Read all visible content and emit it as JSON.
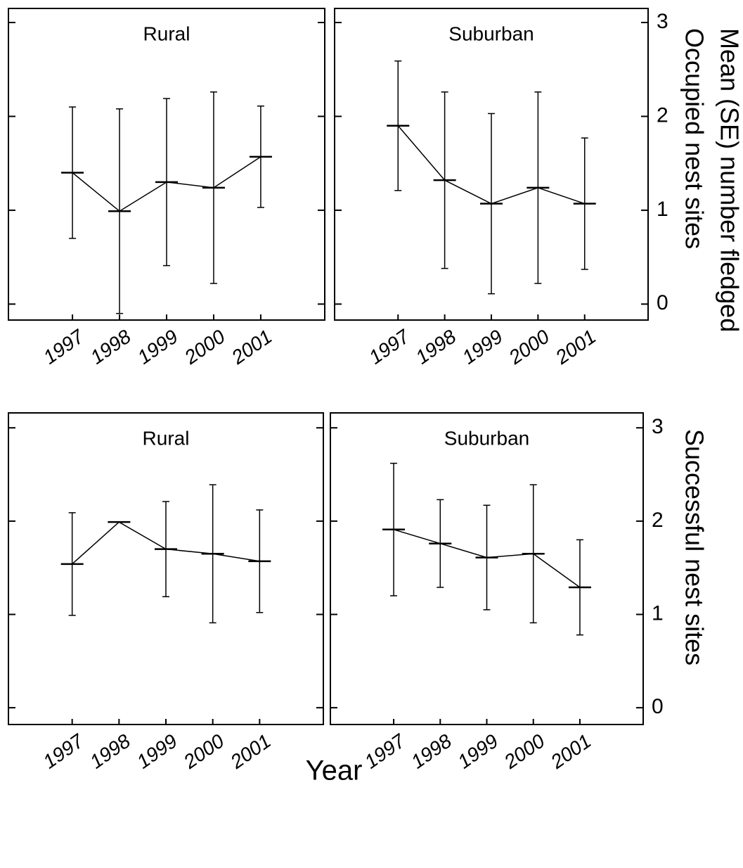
{
  "figure": {
    "xlabel": "Year",
    "ylabel": "Mean (SE) number fledged"
  },
  "chart_data": [
    {
      "type": "line",
      "title": "Rural",
      "categories": [
        "1997",
        "1998",
        "1999",
        "2000",
        "2001"
      ],
      "values": [
        1.4,
        0.99,
        1.3,
        1.24,
        1.57
      ],
      "errors": [
        0.7,
        1.09,
        0.89,
        1.02,
        0.54
      ],
      "color": "#000000",
      "ylim": [
        -0.17,
        3.15
      ],
      "yticks": [
        0,
        1,
        2,
        3
      ],
      "show_ytick_labels": false
    },
    {
      "type": "line",
      "title": "Suburban",
      "ylabel": "Occupied nest sites",
      "categories": [
        "1997",
        "1998",
        "1999",
        "2000",
        "2001"
      ],
      "values": [
        1.9,
        1.32,
        1.07,
        1.24,
        1.07
      ],
      "errors": [
        0.69,
        0.94,
        0.96,
        1.02,
        0.7
      ],
      "color": "#000000",
      "ylim": [
        -0.17,
        3.15
      ],
      "yticks": [
        0,
        1,
        2,
        3
      ],
      "show_ytick_labels": true
    },
    {
      "type": "line",
      "title": "Rural",
      "categories": [
        "1997",
        "1998",
        "1999",
        "2000",
        "2001"
      ],
      "values": [
        1.54,
        1.99,
        1.7,
        1.65,
        1.57
      ],
      "errors": [
        0.55,
        0,
        0.51,
        0.74,
        0.55
      ],
      "color": "#000000",
      "ylim": [
        -0.18,
        3.16
      ],
      "yticks": [
        0,
        1,
        2,
        3
      ],
      "show_ytick_labels": false
    },
    {
      "type": "line",
      "title": "Suburban",
      "ylabel": "Successful nest sites",
      "categories": [
        "1997",
        "1998",
        "1999",
        "2000",
        "2001"
      ],
      "values": [
        1.91,
        1.76,
        1.61,
        1.65,
        1.29
      ],
      "errors": [
        0.71,
        0.47,
        0.56,
        0.74,
        0.51
      ],
      "color": "#000000",
      "ylim": [
        -0.18,
        3.16
      ],
      "yticks": [
        0,
        1,
        2,
        3
      ],
      "show_ytick_labels": true
    }
  ]
}
